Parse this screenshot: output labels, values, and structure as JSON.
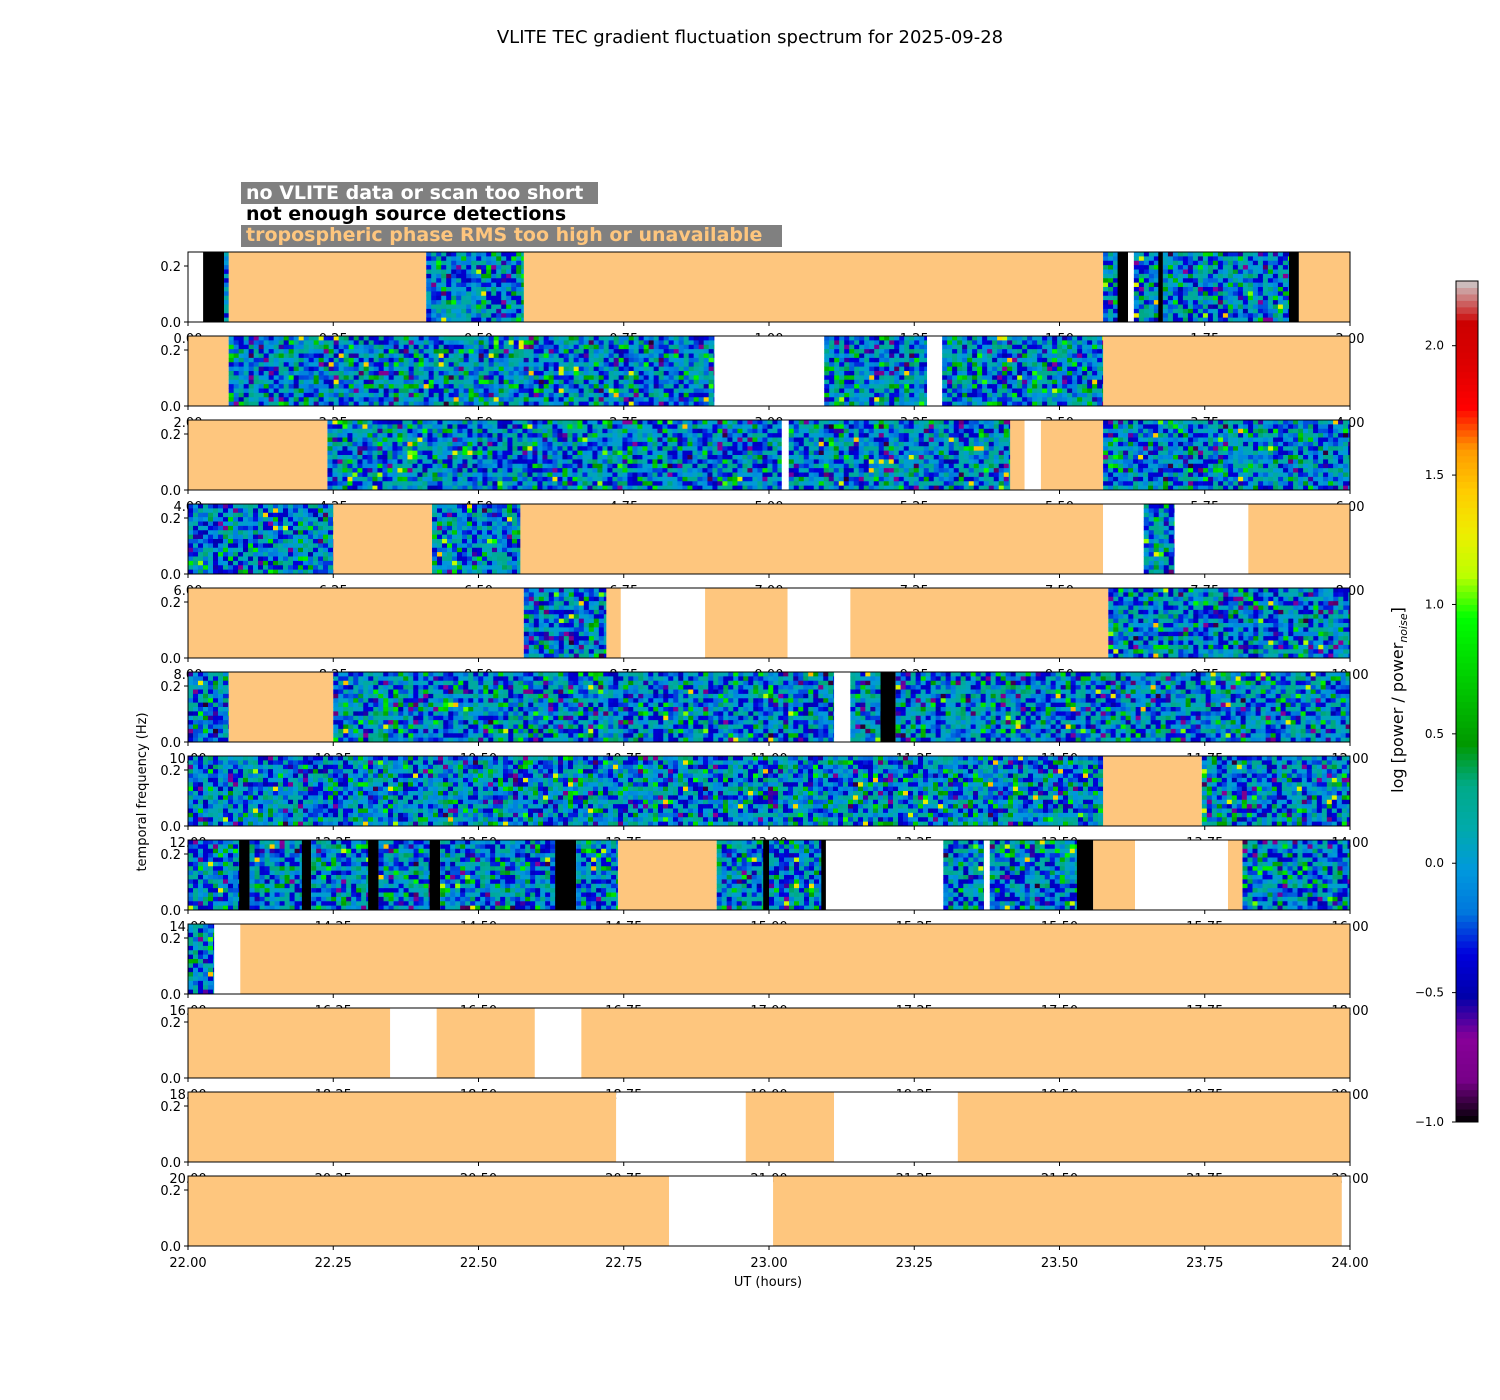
{
  "chart_data": {
    "type": "heatmap",
    "title": "VLITE TEC gradient fluctuation spectrum for 2025-09-28",
    "xlabel": "UT (hours)",
    "ylabel": "temporal frequency (Hz)",
    "colorbar": {
      "label_main": "log [power / power",
      "label_sub": "noise",
      "label_close": "]",
      "range": [
        -1.0,
        2.25
      ],
      "ticks": [
        "−1.0",
        "−0.5",
        "0.0",
        "0.5",
        "1.0",
        "1.5",
        "2.0"
      ],
      "tick_values": [
        -1.0,
        -0.5,
        0.0,
        0.5,
        1.0,
        1.5,
        2.0
      ],
      "colormap": "nipy_spectral"
    },
    "legend": [
      {
        "text": "no VLITE data or scan too short",
        "color": "#ffffff"
      },
      {
        "text": "not enough source detections",
        "color": "#000000"
      },
      {
        "text": "tropospheric phase RMS too high or unavailable",
        "color": "#fec67e"
      }
    ],
    "y_ticks": [
      "0.0",
      "0.2"
    ],
    "y_tick_values": [
      0.0,
      0.2
    ],
    "ylim": [
      0,
      0.25
    ],
    "panels": [
      {
        "xlim": [
          0,
          2
        ],
        "xticks": [
          "0.00",
          "0.25",
          "0.50",
          "0.75",
          "1.00",
          "1.25",
          "1.50",
          "1.75",
          "2.00"
        ],
        "segments": [
          [
            0,
            0.026,
            "none"
          ],
          [
            0.026,
            0.062,
            "black"
          ],
          [
            0.062,
            0.07,
            "data"
          ],
          [
            0.07,
            0.41,
            "tropo"
          ],
          [
            0.41,
            0.578,
            "data"
          ],
          [
            0.578,
            1.575,
            "tropo"
          ],
          [
            1.575,
            1.6,
            "data"
          ],
          [
            1.6,
            1.618,
            "black"
          ],
          [
            1.618,
            1.628,
            "none"
          ],
          [
            1.628,
            1.67,
            "data"
          ],
          [
            1.67,
            1.678,
            "black"
          ],
          [
            1.678,
            1.895,
            "data"
          ],
          [
            1.895,
            1.912,
            "black"
          ],
          [
            1.912,
            2.0,
            "tropo"
          ]
        ]
      },
      {
        "xlim": [
          2,
          4
        ],
        "xticks": [
          "2.00",
          "2.25",
          "2.50",
          "2.75",
          "3.00",
          "3.25",
          "3.50",
          "3.75",
          "4.00"
        ],
        "segments": [
          [
            2.0,
            2.07,
            "tropo"
          ],
          [
            2.07,
            2.906,
            "data"
          ],
          [
            2.906,
            3.095,
            "none"
          ],
          [
            3.095,
            3.272,
            "data"
          ],
          [
            3.272,
            3.298,
            "none"
          ],
          [
            3.298,
            3.575,
            "data"
          ],
          [
            3.575,
            4.0,
            "tropo"
          ]
        ]
      },
      {
        "xlim": [
          4,
          6
        ],
        "xticks": [
          "4.00",
          "4.25",
          "4.50",
          "4.75",
          "5.00",
          "5.25",
          "5.50",
          "5.75",
          "6.00"
        ],
        "segments": [
          [
            4.0,
            4.24,
            "tropo"
          ],
          [
            4.24,
            5.022,
            "data"
          ],
          [
            5.022,
            5.034,
            "none"
          ],
          [
            5.034,
            5.415,
            "data"
          ],
          [
            5.415,
            5.44,
            "tropo"
          ],
          [
            5.44,
            5.468,
            "none"
          ],
          [
            5.468,
            5.575,
            "tropo"
          ],
          [
            5.575,
            6.0,
            "data"
          ]
        ]
      },
      {
        "xlim": [
          6,
          8
        ],
        "xticks": [
          "6.00",
          "6.25",
          "6.50",
          "6.75",
          "7.00",
          "7.25",
          "7.50",
          "7.75",
          "8.00"
        ],
        "segments": [
          [
            6.0,
            6.25,
            "data"
          ],
          [
            6.25,
            6.42,
            "tropo"
          ],
          [
            6.42,
            6.572,
            "data"
          ],
          [
            6.572,
            7.575,
            "tropo"
          ],
          [
            7.575,
            7.645,
            "none"
          ],
          [
            7.645,
            7.698,
            "data"
          ],
          [
            7.698,
            7.825,
            "none"
          ],
          [
            7.825,
            8.0,
            "tropo"
          ]
        ]
      },
      {
        "xlim": [
          8,
          10
        ],
        "xticks": [
          "8.00",
          "8.25",
          "8.50",
          "8.75",
          "9.00",
          "9.25",
          "9.50",
          "9.75",
          "10.00"
        ],
        "segments": [
          [
            8.0,
            8.578,
            "tropo"
          ],
          [
            8.578,
            8.72,
            "data"
          ],
          [
            8.72,
            8.745,
            "tropo"
          ],
          [
            8.745,
            8.89,
            "none"
          ],
          [
            8.89,
            9.032,
            "tropo"
          ],
          [
            9.032,
            9.14,
            "none"
          ],
          [
            9.14,
            9.584,
            "tropo"
          ],
          [
            9.584,
            10.0,
            "data"
          ]
        ]
      },
      {
        "xlim": [
          10,
          12
        ],
        "xticks": [
          "10.00",
          "10.25",
          "10.50",
          "10.75",
          "11.00",
          "11.25",
          "11.50",
          "11.75",
          "12.00"
        ],
        "segments": [
          [
            10.0,
            10.07,
            "data"
          ],
          [
            10.07,
            10.25,
            "tropo"
          ],
          [
            10.25,
            11.112,
            "data"
          ],
          [
            11.112,
            11.14,
            "none"
          ],
          [
            11.14,
            11.192,
            "data"
          ],
          [
            11.192,
            11.218,
            "black"
          ],
          [
            11.218,
            12.0,
            "data"
          ]
        ]
      },
      {
        "xlim": [
          12,
          14
        ],
        "xticks": [
          "12.00",
          "12.25",
          "12.50",
          "12.75",
          "13.00",
          "13.25",
          "13.50",
          "13.75",
          "14.00"
        ],
        "segments": [
          [
            12.0,
            13.575,
            "data"
          ],
          [
            13.575,
            13.745,
            "tropo"
          ],
          [
            13.745,
            14.0,
            "data"
          ]
        ]
      },
      {
        "xlim": [
          14,
          16
        ],
        "xticks": [
          "14.00",
          "14.25",
          "14.50",
          "14.75",
          "15.00",
          "15.25",
          "15.50",
          "15.75",
          "16.00"
        ],
        "segments": [
          [
            14.0,
            14.088,
            "data"
          ],
          [
            14.088,
            14.106,
            "black"
          ],
          [
            14.106,
            14.196,
            "data"
          ],
          [
            14.196,
            14.212,
            "black"
          ],
          [
            14.212,
            14.31,
            "data"
          ],
          [
            14.31,
            14.328,
            "black"
          ],
          [
            14.328,
            14.416,
            "data"
          ],
          [
            14.416,
            14.434,
            "black"
          ],
          [
            14.434,
            14.632,
            "data"
          ],
          [
            14.632,
            14.668,
            "black"
          ],
          [
            14.668,
            14.74,
            "data"
          ],
          [
            14.74,
            14.91,
            "tropo"
          ],
          [
            14.91,
            14.99,
            "data"
          ],
          [
            14.99,
            15.0,
            "black"
          ],
          [
            15.0,
            15.09,
            "data"
          ],
          [
            15.09,
            15.098,
            "black"
          ],
          [
            15.098,
            15.3,
            "none"
          ],
          [
            15.3,
            15.37,
            "data"
          ],
          [
            15.37,
            15.38,
            "none"
          ],
          [
            15.38,
            15.53,
            "data"
          ],
          [
            15.53,
            15.558,
            "black"
          ],
          [
            15.558,
            15.63,
            "tropo"
          ],
          [
            15.63,
            15.79,
            "none"
          ],
          [
            15.79,
            15.815,
            "tropo"
          ],
          [
            15.815,
            16.0,
            "data"
          ]
        ]
      },
      {
        "xlim": [
          16,
          18
        ],
        "xticks": [
          "16.00",
          "16.25",
          "16.50",
          "16.75",
          "17.00",
          "17.25",
          "17.50",
          "17.75",
          "18.00"
        ],
        "segments": [
          [
            16.0,
            16.045,
            "data"
          ],
          [
            16.045,
            16.09,
            "none"
          ],
          [
            16.09,
            18.0,
            "tropo"
          ]
        ]
      },
      {
        "xlim": [
          18,
          20
        ],
        "xticks": [
          "18.00",
          "18.25",
          "18.50",
          "18.75",
          "19.00",
          "19.25",
          "19.50",
          "19.75",
          "20.00"
        ],
        "segments": [
          [
            18.0,
            18.348,
            "tropo"
          ],
          [
            18.348,
            18.428,
            "none"
          ],
          [
            18.428,
            18.597,
            "tropo"
          ],
          [
            18.597,
            18.677,
            "none"
          ],
          [
            18.677,
            20.0,
            "tropo"
          ]
        ]
      },
      {
        "xlim": [
          20,
          22
        ],
        "xticks": [
          "20.00",
          "20.25",
          "20.50",
          "20.75",
          "21.00",
          "21.25",
          "21.50",
          "21.75",
          "22.00"
        ],
        "segments": [
          [
            20.0,
            20.737,
            "tropo"
          ],
          [
            20.737,
            20.96,
            "none"
          ],
          [
            20.96,
            21.112,
            "tropo"
          ],
          [
            21.112,
            21.325,
            "none"
          ],
          [
            21.325,
            22.0,
            "tropo"
          ]
        ]
      },
      {
        "xlim": [
          22,
          24
        ],
        "xticks": [
          "22.00",
          "22.25",
          "22.50",
          "22.75",
          "23.00",
          "23.25",
          "23.50",
          "23.75",
          "24.00"
        ],
        "segments": [
          [
            22.0,
            22.828,
            "tropo"
          ],
          [
            22.828,
            23.007,
            "none"
          ],
          [
            23.007,
            23.986,
            "tropo"
          ],
          [
            23.986,
            24.0,
            "none"
          ]
        ]
      }
    ]
  }
}
